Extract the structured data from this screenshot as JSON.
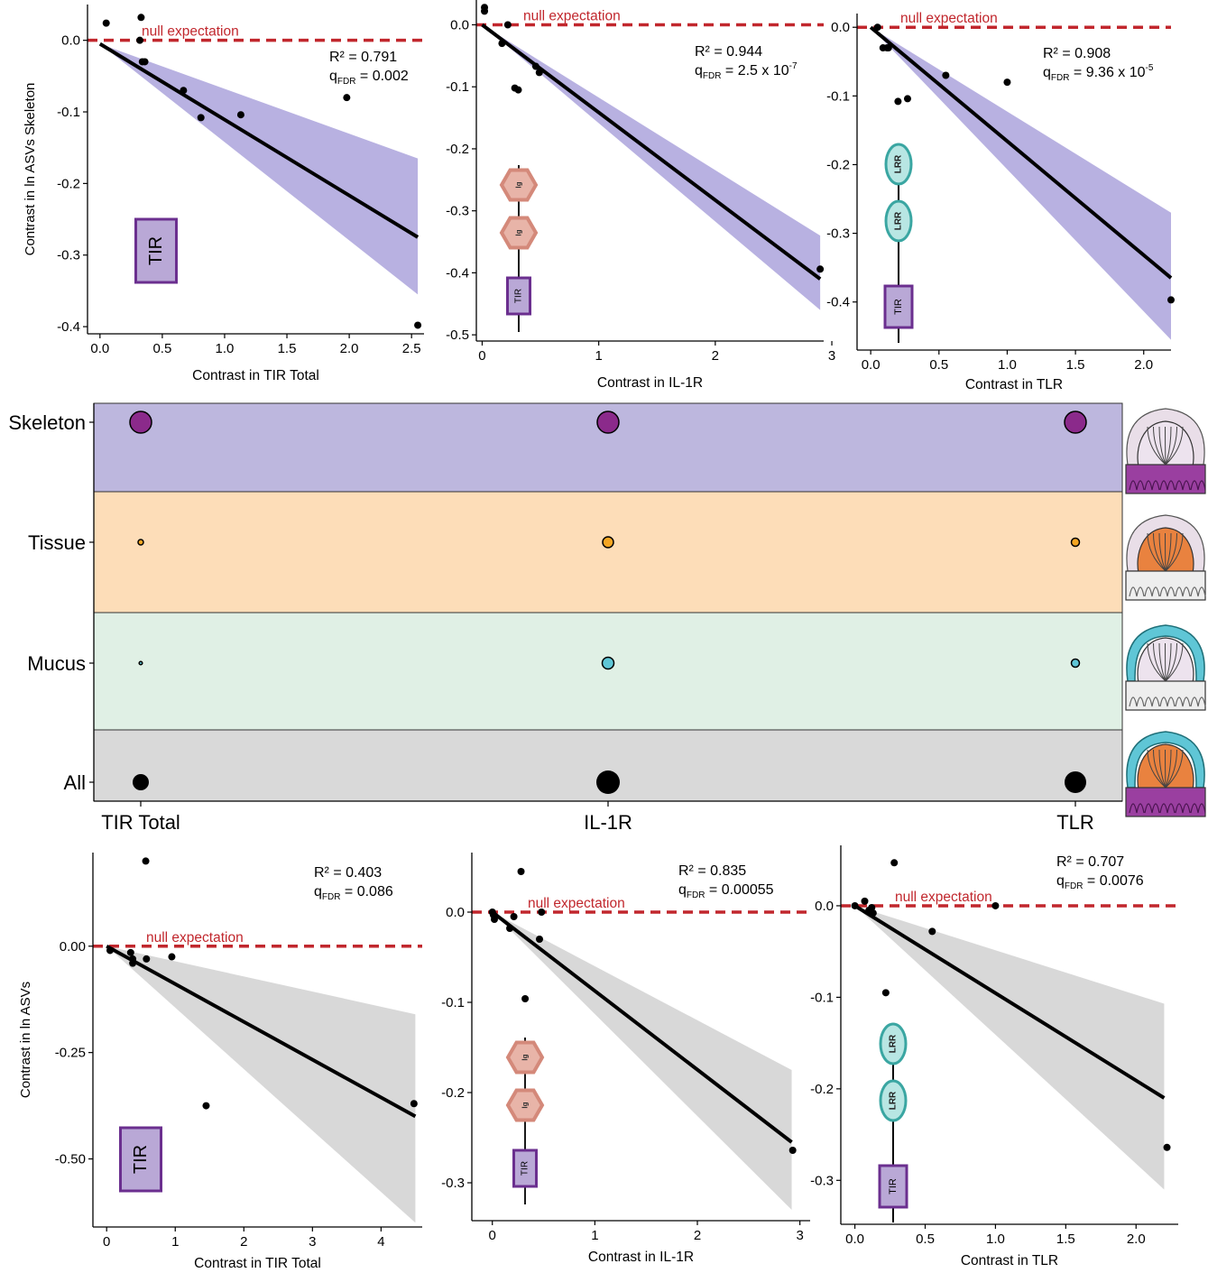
{
  "null_label": "null expectation",
  "stat_labels": {
    "r2_prefix": "R² = ",
    "q_prefix": "q",
    "q_sub": "FDR",
    "q_eq": " = "
  },
  "domains": {
    "tir": "TIR",
    "ig": "Ig",
    "lrr": "LRR"
  },
  "colors": {
    "skeleton": "#8B2A8B",
    "skeleton_band": "#BDB7DE",
    "tissue": "#F5A623",
    "tissue_band": "#FDDDB8",
    "mucus": "#5FC6D6",
    "mucus_band": "#E0F0E5",
    "all": "#000000",
    "all_band": "#D9D9D9",
    "null_line": "#C1272D",
    "ci_top": "#B4ADDF",
    "ci_bottom": "#D6D6D6",
    "tir_fill": "#B9A8D6",
    "tir_stroke": "#6B2F8F",
    "ig_fill": "#E8B4A8",
    "ig_stroke": "#D4897A",
    "lrr_fill": "#B8E6E3",
    "lrr_stroke": "#3AA6A2"
  },
  "chart_data": [
    {
      "type": "scatter",
      "id": "top-tir-total",
      "xlabel": "Contrast in TIR Total",
      "ylabel": "Contrast in ln ASVs Skeleton",
      "xlim": [
        -0.1,
        2.6
      ],
      "ylim": [
        -0.41,
        0.05
      ],
      "xticks": [
        "0.0",
        "0.5",
        "1.0",
        "1.5",
        "2.0",
        "2.5"
      ],
      "xtick_values": [
        0,
        0.5,
        1,
        1.5,
        2,
        2.5
      ],
      "yticks": [
        "0.0",
        "-0.1",
        "-0.2",
        "-0.3",
        "-0.4"
      ],
      "ytick_values": [
        0,
        -0.1,
        -0.2,
        -0.3,
        -0.4
      ],
      "r2": "0.791",
      "q": "0.002",
      "q_exp": "",
      "fit": {
        "x": [
          0,
          2.55
        ],
        "y": [
          -0.005,
          -0.275
        ]
      },
      "ci": {
        "upper_end": -0.165,
        "lower_end": -0.355
      },
      "points": {
        "x": [
          0.05,
          0.33,
          0.32,
          0.34,
          0.36,
          0.67,
          0.81,
          1.13,
          1.98,
          2.55
        ],
        "y": [
          0.024,
          0.032,
          0.0,
          -0.03,
          -0.03,
          -0.07,
          -0.108,
          -0.104,
          -0.08,
          -0.398
        ]
      },
      "domains": [
        "tir"
      ]
    },
    {
      "type": "scatter",
      "id": "top-il1r",
      "xlabel": "Contrast in IL-1R",
      "ylabel": "",
      "xlim": [
        -0.05,
        2.93
      ],
      "ylim": [
        -0.51,
        0.04
      ],
      "xticks": [
        "0",
        "1",
        "2",
        "3"
      ],
      "xtick_values": [
        0,
        1,
        2,
        3
      ],
      "yticks": [
        "0.0",
        "-0.1",
        "-0.2",
        "-0.3",
        "-0.4",
        "-0.5"
      ],
      "ytick_values": [
        0,
        -0.1,
        -0.2,
        -0.3,
        -0.4,
        -0.5
      ],
      "r2": "0.944",
      "q": "2.5 x 10",
      "q_exp": "-7",
      "fit": {
        "x": [
          0,
          2.9
        ],
        "y": [
          0.0,
          -0.41
        ]
      },
      "ci": {
        "upper_end": -0.34,
        "lower_end": -0.46
      },
      "points": {
        "x": [
          0.02,
          0.02,
          0.17,
          0.22,
          0.28,
          0.31,
          0.46,
          0.49,
          2.9
        ],
        "y": [
          0.028,
          0.022,
          -0.03,
          0.0,
          -0.102,
          -0.105,
          -0.067,
          -0.077,
          -0.394
        ]
      },
      "domains": [
        "ig",
        "ig",
        "tir"
      ]
    },
    {
      "type": "scatter",
      "id": "top-tlr",
      "xlabel": "Contrast in TLR",
      "ylabel": "",
      "xlim": [
        -0.1,
        2.2
      ],
      "ylim": [
        -0.47,
        0.02
      ],
      "xticks": [
        "0.0",
        "0.5",
        "1.0",
        "1.5",
        "2.0"
      ],
      "xtick_values": [
        0,
        0.5,
        1,
        1.5,
        2
      ],
      "yticks": [
        "0.0",
        "-0.1",
        "-0.2",
        "-0.3",
        "-0.4"
      ],
      "ytick_values": [
        0,
        -0.1,
        -0.2,
        -0.3,
        -0.4
      ],
      "r2": "0.908",
      "q": "9.36 x 10",
      "q_exp": "-5",
      "fit": {
        "x": [
          0,
          2.2
        ],
        "y": [
          0.0,
          -0.365
        ]
      },
      "ci": {
        "upper_end": -0.27,
        "lower_end": -0.455
      },
      "points": {
        "x": [
          0.05,
          0.09,
          0.12,
          0.13,
          0.2,
          0.27,
          0.55,
          1.0,
          2.2
        ],
        "y": [
          0.0,
          -0.03,
          -0.03,
          -0.03,
          -0.108,
          -0.104,
          -0.07,
          -0.08,
          -0.397
        ]
      },
      "domains": [
        "lrr",
        "lrr",
        "tir"
      ]
    },
    {
      "type": "bubble",
      "id": "middle-dots",
      "rows": [
        "Skeleton",
        "Tissue",
        "Mucus",
        "All"
      ],
      "columns": [
        "TIR Total",
        "IL-1R",
        "TLR"
      ],
      "sizes": [
        [
          12,
          12,
          12
        ],
        [
          3,
          6,
          4.5
        ],
        [
          1.8,
          6.5,
          4.5
        ],
        [
          9,
          13,
          12
        ]
      ]
    },
    {
      "type": "scatter",
      "id": "bottom-tir-total",
      "xlabel": "Contrast in TIR Total",
      "ylabel": "Contrast in ln ASVs",
      "xlim": [
        -0.2,
        4.6
      ],
      "ylim": [
        -0.66,
        0.22
      ],
      "xticks": [
        "0",
        "1",
        "2",
        "3",
        "4"
      ],
      "xtick_values": [
        0,
        1,
        2,
        3,
        4
      ],
      "yticks": [
        "0.00",
        "-0.25",
        "-0.50"
      ],
      "ytick_values": [
        0,
        -0.25,
        -0.5
      ],
      "r2": "0.403",
      "q": "0.086",
      "q_exp": "",
      "fit": {
        "x": [
          0,
          4.5
        ],
        "y": [
          0.0,
          -0.4
        ]
      },
      "ci": {
        "upper_end": -0.16,
        "lower_end": -0.65
      },
      "points": {
        "x": [
          0.05,
          0.35,
          0.38,
          0.38,
          0.57,
          0.58,
          0.95,
          1.45,
          4.48
        ],
        "y": [
          -0.01,
          -0.015,
          -0.03,
          -0.04,
          0.2,
          -0.03,
          -0.025,
          -0.375,
          -0.37
        ]
      },
      "domains": [
        "tir"
      ]
    },
    {
      "type": "scatter",
      "id": "bottom-il1r",
      "xlabel": "Contrast in IL-1R",
      "ylabel": "",
      "xlim": [
        -0.2,
        3.1
      ],
      "ylim": [
        -0.342,
        0.066
      ],
      "xticks": [
        "0",
        "1",
        "2",
        "3"
      ],
      "xtick_values": [
        0,
        1,
        2,
        3
      ],
      "yticks": [
        "0.0",
        "-0.1",
        "-0.2",
        "-0.3"
      ],
      "ytick_values": [
        0,
        -0.1,
        -0.2,
        -0.3
      ],
      "r2": "0.835",
      "q": "0.00055",
      "q_exp": "",
      "fit": {
        "x": [
          0,
          2.92
        ],
        "y": [
          0.0,
          -0.255
        ]
      },
      "ci": {
        "upper_end": -0.175,
        "lower_end": -0.33
      },
      "points": {
        "x": [
          0.0,
          0.01,
          0.02,
          0.17,
          0.21,
          0.28,
          0.32,
          0.46,
          0.48,
          2.93
        ],
        "y": [
          0.0,
          -0.003,
          -0.008,
          -0.018,
          -0.005,
          0.045,
          -0.096,
          -0.03,
          0.0,
          -0.264
        ]
      },
      "domains": [
        "ig",
        "ig",
        "tir"
      ]
    },
    {
      "type": "scatter",
      "id": "bottom-tlr",
      "xlabel": "Contrast in TLR",
      "ylabel": "",
      "xlim": [
        -0.1,
        2.3
      ],
      "ylim": [
        -0.348,
        0.066
      ],
      "xticks": [
        "0.0",
        "0.5",
        "1.0",
        "1.5",
        "2.0"
      ],
      "xtick_values": [
        0,
        0.5,
        1,
        1.5,
        2
      ],
      "yticks": [
        "0.0",
        "-0.1",
        "-0.2",
        "-0.3"
      ],
      "ytick_values": [
        0,
        -0.1,
        -0.2,
        -0.3
      ],
      "r2": "0.707",
      "q": "0.0076",
      "q_exp": "",
      "fit": {
        "x": [
          0,
          2.2
        ],
        "y": [
          0.0,
          -0.21
        ]
      },
      "ci": {
        "upper_end": -0.107,
        "lower_end": -0.31
      },
      "points": {
        "x": [
          0.0,
          0.07,
          0.1,
          0.12,
          0.13,
          0.22,
          0.28,
          0.55,
          1.0,
          2.22
        ],
        "y": [
          0.0,
          0.005,
          -0.005,
          -0.002,
          -0.008,
          -0.095,
          0.047,
          -0.028,
          0.0,
          -0.264
        ]
      },
      "domains": [
        "lrr",
        "lrr",
        "tir"
      ]
    }
  ]
}
